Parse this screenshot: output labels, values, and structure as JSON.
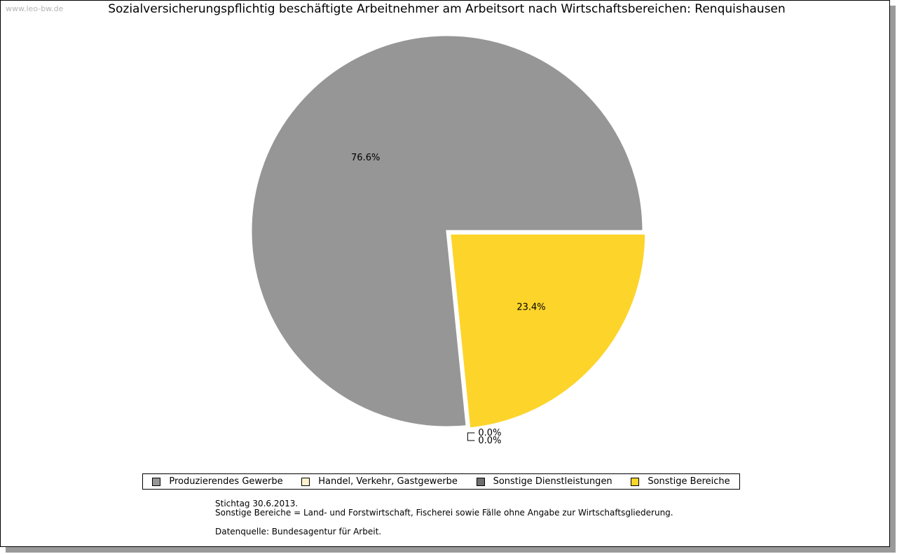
{
  "watermark": "www.leo-bw.de",
  "chart_data": {
    "type": "pie",
    "title": "Sozialversicherungspflichtig beschäftigte Arbeitnehmer am Arbeitsort nach Wirtschaftsbereichen: Renquishausen",
    "slices": [
      {
        "label": "Produzierendes Gewerbe",
        "value": 76.6,
        "display": "76.6%",
        "color": "#969696",
        "exploded": false
      },
      {
        "label": "Handel, Verkehr, Gastgewerbe",
        "value": 0.0,
        "display": "0.0%",
        "color": "#fff2cc",
        "exploded": false
      },
      {
        "label": "Sonstige Dienstleistungen",
        "value": 0.0,
        "display": "0.0%",
        "color": "#6f6f6f",
        "exploded": false
      },
      {
        "label": "Sonstige Bereiche",
        "value": 23.4,
        "display": "23.4%",
        "color": "#fdd42a",
        "exploded": true
      }
    ],
    "legend_placement": "bottom"
  },
  "notes": {
    "line1": "Stichtag 30.6.2013.",
    "line2": "Sonstige Bereiche = Land- und Forstwirtschaft, Fischerei sowie Fälle ohne Angabe zur Wirtschaftsgliederung.",
    "line3": "Datenquelle: Bundesagentur für Arbeit."
  }
}
